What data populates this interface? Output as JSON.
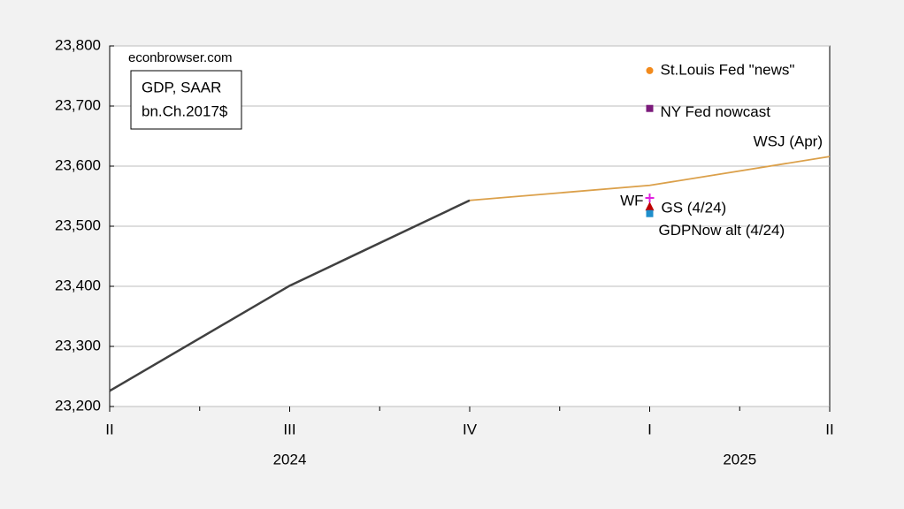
{
  "chart_data": {
    "type": "line",
    "source": "econbrowser.com",
    "box_text": [
      "GDP, SAAR",
      "bn.Ch.2017$"
    ],
    "categories": [
      "II",
      "III",
      "IV",
      "I",
      "II"
    ],
    "years": [
      {
        "label": "2024",
        "from": 0,
        "to": 2
      },
      {
        "label": "2025",
        "from": 3,
        "to": 4
      }
    ],
    "ylim": [
      23200,
      23800
    ],
    "yticks": [
      {
        "value": 23200,
        "label": "23,200"
      },
      {
        "value": 23300,
        "label": "23,300"
      },
      {
        "value": 23400,
        "label": "23,400"
      },
      {
        "value": 23500,
        "label": "23,500"
      },
      {
        "value": 23600,
        "label": "23,600"
      },
      {
        "value": 23700,
        "label": "23,700"
      },
      {
        "value": 23800,
        "label": "23,800"
      }
    ],
    "grid": true,
    "series": [
      {
        "name": null,
        "color": "#404040",
        "style": "line",
        "width": 2.5,
        "values": [
          23226,
          23401,
          23543,
          null,
          null
        ]
      },
      {
        "name": "WSJ (Apr)",
        "color": "#dba04a",
        "label_color": "#d9993a",
        "style": "line",
        "width": 1.8,
        "values": [
          null,
          null,
          23543,
          23568,
          23616
        ]
      },
      {
        "name": "St.Louis Fed \"news\"",
        "color": "#f28a1c",
        "label_color": "#ea1a7f",
        "style": "circle",
        "values": [
          null,
          null,
          null,
          23759,
          null
        ]
      },
      {
        "name": "NY Fed nowcast",
        "color": "#7b1a7b",
        "label_color": "#7b1a7b",
        "style": "square",
        "values": [
          null,
          null,
          null,
          23696,
          null
        ]
      },
      {
        "name": "WF",
        "color": "#e020e0",
        "label_color": "#e020e0",
        "style": "plus",
        "values": [
          null,
          null,
          null,
          23547,
          null
        ]
      },
      {
        "name": "GS (4/24)",
        "color": "#c00000",
        "label_color": "#c00000",
        "style": "triangle",
        "values": [
          null,
          null,
          null,
          23532,
          null
        ]
      },
      {
        "name": "GDPNow alt (4/24)",
        "color": "#1f8fcc",
        "label_color": "#1f80c0",
        "style": "square",
        "values": [
          null,
          null,
          null,
          23521,
          null
        ]
      }
    ]
  }
}
